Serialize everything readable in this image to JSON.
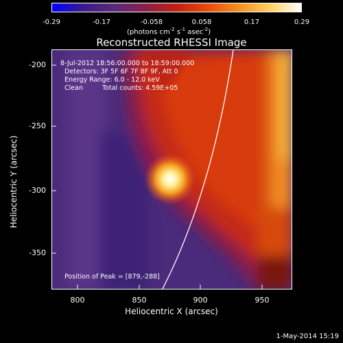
{
  "colorbar": {
    "ticks": [
      "-0.29",
      "-0.17",
      "-0.058",
      "0.058",
      "0.17",
      "0.29"
    ],
    "units_prefix": "(photons cm",
    "units_exp1": "-2",
    "units_mid1": " s",
    "units_exp2": "-1",
    "units_mid2": " asec",
    "units_exp3": "-2",
    "units_suffix": ")"
  },
  "title": "Reconstructed RHESSI Image",
  "info": {
    "time_range": "8-Jul-2012 18:56:00.000 to 18:59:00.000",
    "detectors": "Detectors: 3F 5F 6F 7F 8F 9F, Att 0",
    "energy": "Energy Range: 6.0 - 12.0 keV",
    "clean": "Clean",
    "counts": "Total counts: 4.59E+05",
    "peak": "Position of Peak = [879,-288]"
  },
  "axes": {
    "xlabel": "Heliocentric X (arcsec)",
    "ylabel": "Heliocentric Y (arcsec)",
    "xticks": [
      "800",
      "850",
      "900",
      "950"
    ],
    "yticks": [
      "-200",
      "-250",
      "-300",
      "-350"
    ]
  },
  "footer": "1-May-2014 15:19",
  "colors": {
    "background": "#000000",
    "text": "#ffffff",
    "colormap": [
      "#0000ff",
      "#3a1a8a",
      "#5a2a7a",
      "#8a1f4a",
      "#c42010",
      "#e84a0a",
      "#f59020",
      "#ffd060",
      "#ffffff"
    ]
  }
}
